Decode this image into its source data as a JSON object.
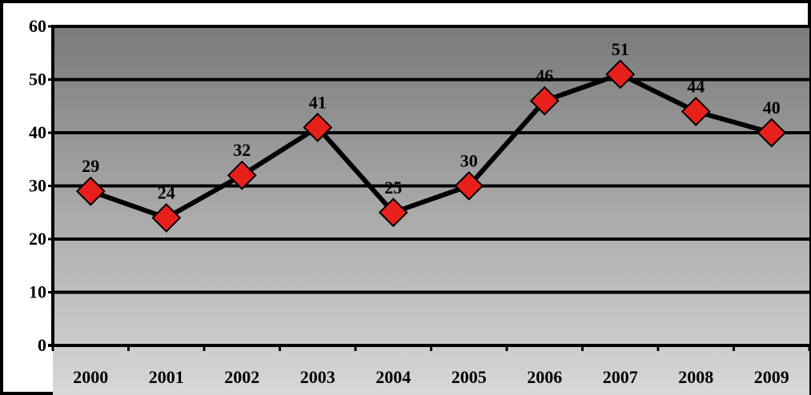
{
  "chart_data": {
    "type": "line",
    "title": "",
    "xlabel": "",
    "ylabel": "",
    "categories": [
      "2000",
      "2001",
      "2002",
      "2003",
      "2004",
      "2005",
      "2006",
      "2007",
      "2008",
      "2009"
    ],
    "series": [
      {
        "values": [
          29,
          24,
          32,
          41,
          25,
          30,
          46,
          51,
          44,
          40
        ]
      }
    ],
    "ylim": [
      0,
      60
    ],
    "yticks": [
      0,
      10,
      20,
      30,
      40,
      50,
      60
    ],
    "grid": true,
    "legend": "none",
    "data_labels": true,
    "marker": "diamond",
    "colors": {
      "line": "#000000",
      "marker_fill": "#e8201c",
      "marker_stroke": "#000000",
      "plot_bg_top": "#7a7a7a",
      "plot_bg_bottom": "#d8d8d8",
      "grid": "#000000",
      "frame": "#000000"
    }
  }
}
